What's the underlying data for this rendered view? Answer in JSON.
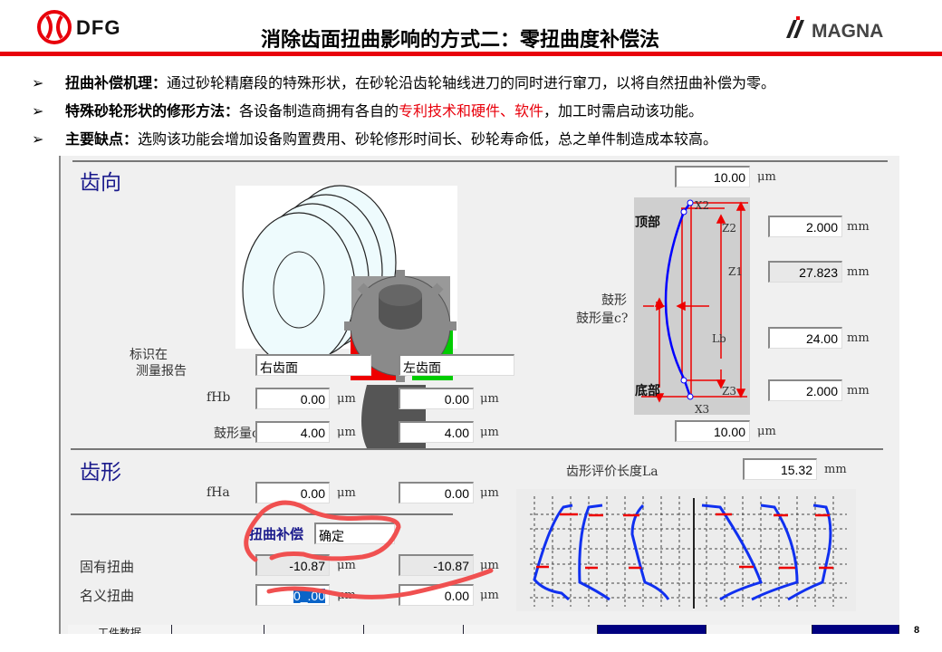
{
  "slide": {
    "title": "消除齿面扭曲影响的方式二：零扭曲度补偿法",
    "page_number": "8",
    "logos": {
      "left": "DFG",
      "right": "MAGNA"
    },
    "bullets": [
      {
        "label": "扭曲补偿机理：",
        "text": "通过砂轮精磨段的特殊形状，在砂轮沿齿轮轴线进刀的同时进行窜刀，以将自然扭曲补偿为零。"
      },
      {
        "label": "特殊砂轮形状的修形方法：",
        "text": "各设备制造商拥有各自的",
        "highlight": "专利技术和硬件、软件",
        "text2": "，加工时需启动该功能。"
      },
      {
        "label": "主要缺点：",
        "text": "选购该功能会增加设备购置费用、砂轮修形时间长、砂轮寿命低，总之单件制造成本较高。"
      }
    ]
  },
  "colors": {
    "accent_red": "#e8000b",
    "section_navy": "#1a1a8c",
    "curve_blue": "#0000ff"
  },
  "software": {
    "lead": {
      "section": "齿向",
      "mark_label_1": "标识在",
      "mark_label_2": "测量报告",
      "right_flank": "右齿面",
      "left_flank": "左齿面",
      "fHb_label": "fHb",
      "fHb_right": "0.00",
      "fHb_left": "0.00",
      "crown_label": "鼓形量c",
      "crown_right": "4.00",
      "crown_left": "4.00",
      "unit_um": "μm"
    },
    "diagram": {
      "top_value": "10.00",
      "bottom_value": "10.00",
      "unit_um": "μm",
      "top_label": "顶部",
      "bottom_label": "底部",
      "crown_label_1": "鼓形",
      "crown_label_2": "鼓形量c?",
      "x2": "X2",
      "x3": "X3",
      "z1": "Z1",
      "z2": "Z2",
      "z3": "Z3",
      "lb": "Lb",
      "z2_value": "2.000",
      "z1_value": "27.823",
      "lb_value": "24.00",
      "z3_value": "2.000",
      "unit_mm": "mm"
    },
    "profile": {
      "section": "齿形",
      "fHa_label": "fHa",
      "fHa_right": "0.00",
      "fHa_left": "0.00",
      "la_label": "齿形评价长度La",
      "la_value": "15.32",
      "unit_mm": "mm",
      "twist_comp_label": "扭曲补偿",
      "twist_comp_value": "确定",
      "inherent_label": "固有扭曲",
      "inherent_right": "-10.87",
      "inherent_left": "-10.87",
      "nominal_label": "名义扭曲",
      "nominal_right": "0_.00",
      "nominal_left": "0.00",
      "unit_um": "μm"
    },
    "tabs": [
      {
        "label": "工件数据"
      }
    ]
  }
}
